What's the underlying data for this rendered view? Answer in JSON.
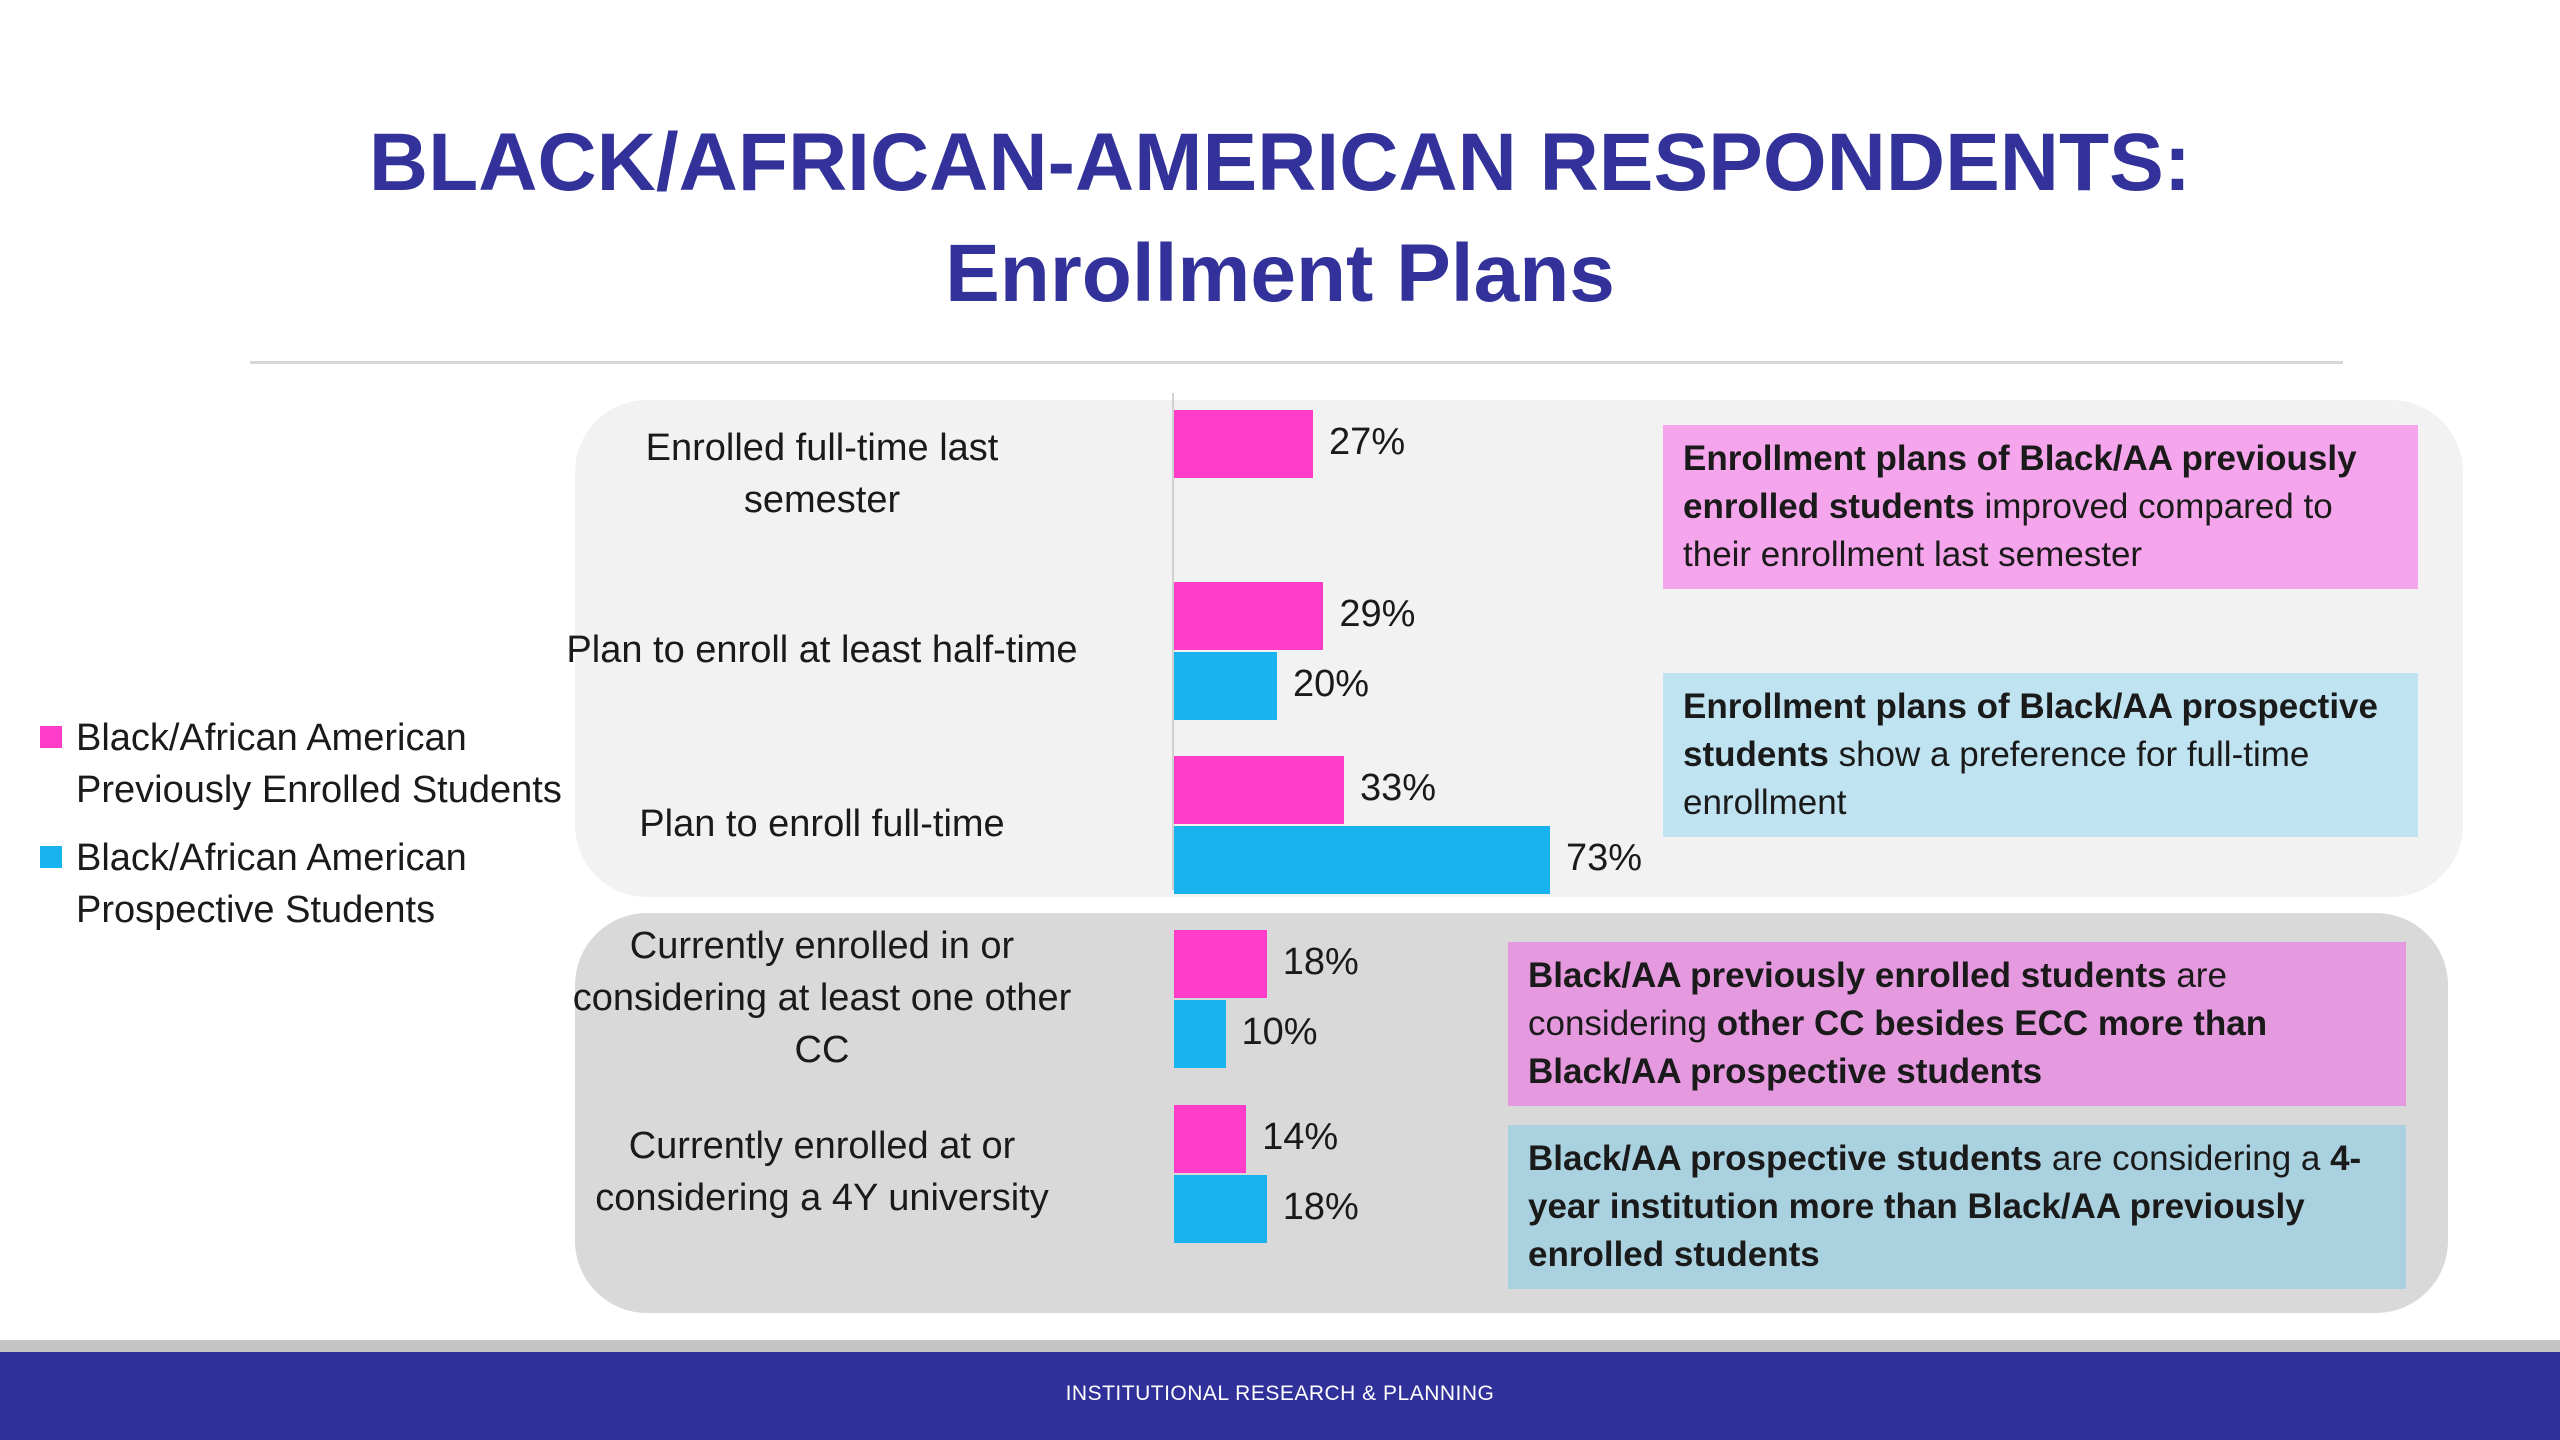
{
  "chart_data": {
    "type": "bar",
    "orientation": "horizontal",
    "title": "BLACK/AFRICAN-AMERICAN RESPONDENTS:",
    "subtitle": "Enrollment Plans",
    "categories": [
      [
        "Enrolled full-time last",
        "semester"
      ],
      [
        "Plan to enroll at least half-time"
      ],
      [
        "Plan to enroll full-time"
      ],
      [
        "Currently enrolled in or",
        "considering at least one other",
        "CC"
      ],
      [
        "Currently enrolled at or",
        "considering a 4Y university"
      ]
    ],
    "series": [
      {
        "name": "Black/African American Previously Enrolled Students",
        "legend_lines": [
          "Black/African American",
          "Previously Enrolled Students"
        ],
        "color": "#ff3dc8",
        "values": [
          27,
          29,
          33,
          18,
          14
        ]
      },
      {
        "name": "Black/African American Prospective Students",
        "legend_lines": [
          "Black/African American",
          "Prospective Students"
        ],
        "color": "#19b3ef",
        "values": [
          null,
          20,
          73,
          10,
          18
        ]
      }
    ],
    "value_suffix": "%",
    "xlim": [
      0,
      100
    ],
    "grid": false,
    "legend_position": "left"
  },
  "callouts": [
    {
      "color": "#f5a5ec",
      "parts": [
        {
          "text": "Enrollment plans of Black/AA previously enrolled students",
          "bold": true
        },
        {
          "text": " improved compared to their enrollment last semester",
          "bold": false
        }
      ]
    },
    {
      "color": "#bfe3f1",
      "parts": [
        {
          "text": "Enrollment plans of Black/AA prospective students",
          "bold": true
        },
        {
          "text": " show a preference for full-time enrollment",
          "bold": false
        }
      ]
    },
    {
      "color": "#e59ae0",
      "parts": [
        {
          "text": "Black/AA previously enrolled students",
          "bold": true
        },
        {
          "text": " are considering ",
          "bold": false
        },
        {
          "text": "other CC besides ECC more than Black/AA prospective students",
          "bold": true
        }
      ]
    },
    {
      "color": "#aad1df",
      "parts": [
        {
          "text": "Black/AA prospective students",
          "bold": true
        },
        {
          "text": " are considering a ",
          "bold": false
        },
        {
          "text": "4-year institution more than Black/AA previously enrolled students",
          "bold": true
        }
      ]
    }
  ],
  "footer": {
    "text": "INSTITUTIONAL RESEARCH & PLANNING"
  }
}
